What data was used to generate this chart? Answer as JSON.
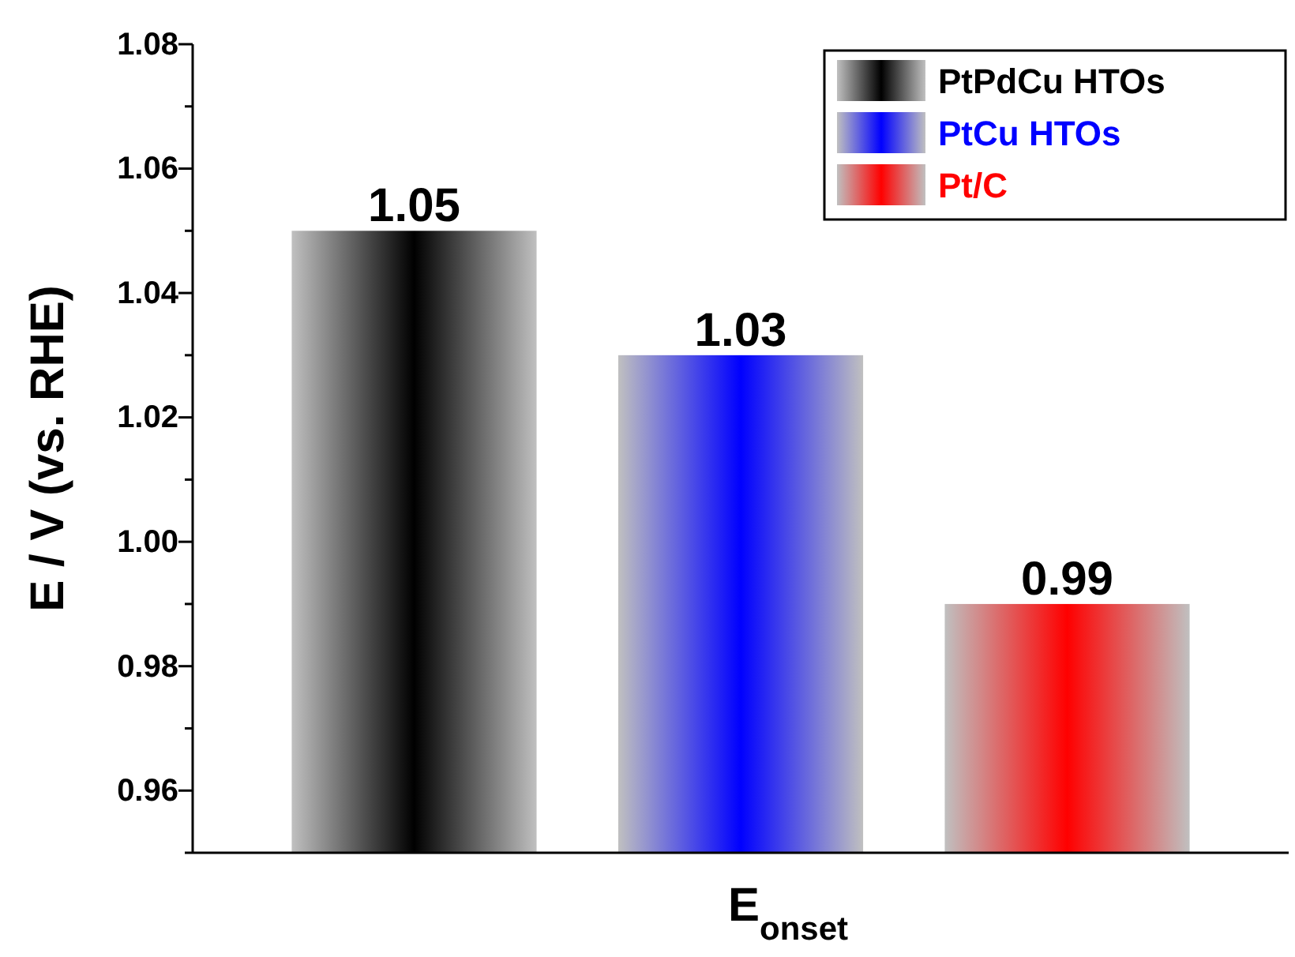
{
  "chart_data": {
    "type": "bar",
    "xlabel": "E$_{onset}$",
    "ylabel": "E / V (vs. RHE)",
    "categories": [
      null
    ],
    "series": [
      {
        "name": "PtPdCu HTOs",
        "color": "#000000",
        "values": [
          1.05
        ]
      },
      {
        "name": "PtCu HTOs",
        "color": "#0000ff",
        "values": [
          1.03
        ]
      },
      {
        "name": "Pt/C",
        "color": "#ff0000",
        "values": [
          0.99
        ]
      }
    ],
    "ylim": [
      0.95,
      1.08
    ],
    "yticks": [
      {
        "value": 0.95,
        "label": null
      },
      0.96,
      {
        "value": 0.97,
        "label": null
      },
      0.98,
      {
        "value": 0.99,
        "label": null
      },
      "1.00",
      {
        "value": 1.01,
        "label": null
      },
      1.02,
      {
        "value": 1.03,
        "label": null
      },
      1.04,
      {
        "value": 1.05,
        "label": null
      },
      1.06,
      {
        "value": 1.07,
        "label": null
      },
      1.08
    ],
    "data_labels": true,
    "legend": "top right"
  }
}
